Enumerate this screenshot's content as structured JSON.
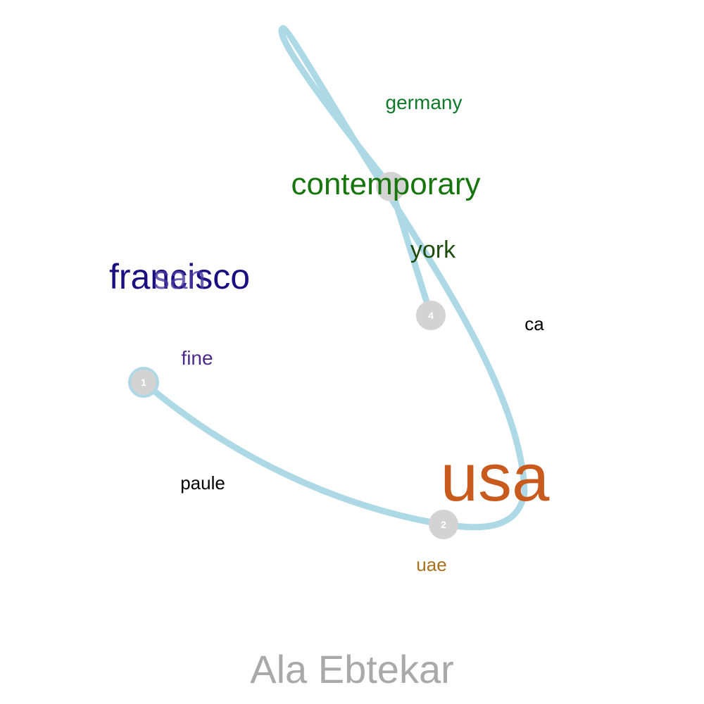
{
  "colors": {
    "path": "#add8e6",
    "node_fill": "#d3d3d3",
    "node_text": "#ffffff",
    "caption": "#a9a9a9"
  },
  "words": [
    {
      "id": "germany",
      "text": "germany",
      "color": "#0f7a2a"
    },
    {
      "id": "contemporary",
      "text": "contemporary",
      "color": "#16750c"
    },
    {
      "id": "york",
      "text": "york",
      "color": "#1f4d10"
    },
    {
      "id": "francisco",
      "text": "francisco",
      "color": "#1a0f80"
    },
    {
      "id": "san",
      "text": "san",
      "color": "#4a3aa0"
    },
    {
      "id": "ca",
      "text": "ca",
      "color": "#000000"
    },
    {
      "id": "fine",
      "text": "fine",
      "color": "#4e2a8a"
    },
    {
      "id": "paule",
      "text": "paule",
      "color": "#000000"
    },
    {
      "id": "usa",
      "text": "usa",
      "color": "#c75a1c"
    },
    {
      "id": "uae",
      "text": "uae",
      "color": "#a8701e"
    }
  ],
  "nodes": [
    {
      "id": "node-1",
      "label": "1"
    },
    {
      "id": "node-2",
      "label": "2"
    },
    {
      "id": "node-3",
      "label": ""
    },
    {
      "id": "node-4",
      "label": "4"
    }
  ],
  "caption": "Ala Ebtekar"
}
